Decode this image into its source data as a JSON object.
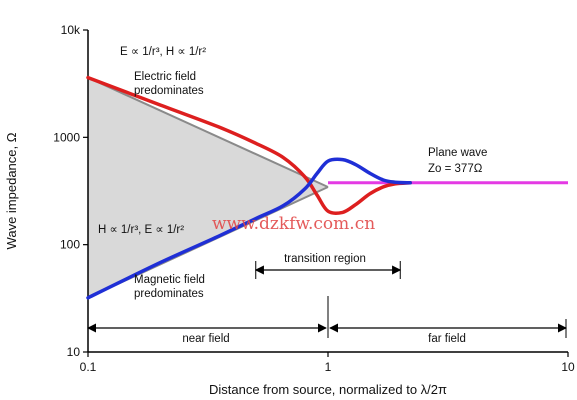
{
  "chart_data": {
    "type": "line",
    "xlabel": "Distance from source, normalized to λ/2π",
    "ylabel": "Wave impedance, Ω",
    "xscale": "log",
    "yscale": "log",
    "xlim": [
      0.1,
      10
    ],
    "ylim": [
      10,
      10000
    ],
    "grid": false,
    "x_ticks": [
      {
        "value": 0.1,
        "label": "0.1"
      },
      {
        "value": 1,
        "label": "1"
      },
      {
        "value": 10,
        "label": "10"
      }
    ],
    "y_ticks": [
      {
        "value": 10,
        "label": "10"
      },
      {
        "value": 100,
        "label": "100"
      },
      {
        "value": 1000,
        "label": "1000"
      },
      {
        "value": 10000,
        "label": "10k"
      }
    ],
    "colors": {
      "electric": "#dd1f1f",
      "magnetic": "#1f2fd6",
      "plane": "#e43ae4",
      "asymptote": "#8a8a8a",
      "region_fill": "#d9d9d9"
    },
    "series": [
      {
        "key": "electric",
        "x": [
          0.1,
          0.2,
          0.35,
          0.5,
          0.65,
          0.8,
          0.9,
          1.0,
          1.15,
          1.3,
          1.5,
          1.7,
          1.9,
          2.2,
          3,
          5,
          10
        ],
        "y": [
          3600,
          2000,
          1250,
          880,
          650,
          430,
          290,
          205,
          200,
          235,
          300,
          345,
          368,
          377,
          377,
          377,
          377
        ]
      },
      {
        "key": "magnetic",
        "x": [
          0.1,
          0.2,
          0.35,
          0.5,
          0.65,
          0.8,
          0.9,
          1.0,
          1.15,
          1.3,
          1.5,
          1.7,
          1.9,
          2.2,
          3,
          5,
          10
        ],
        "y": [
          32,
          68,
          120,
          175,
          230,
          330,
          460,
          600,
          620,
          560,
          460,
          400,
          382,
          377,
          377,
          377,
          377
        ]
      }
    ],
    "asymptotes": {
      "electric_upper": {
        "x": [
          0.1,
          1.0
        ],
        "y": [
          3600,
          360
        ]
      },
      "magnetic_lower": {
        "x": [
          0.1,
          1.0
        ],
        "y": [
          32,
          330
        ]
      }
    },
    "plane_wave_impedance": 377,
    "plane_wave_line": {
      "x": [
        1.0,
        10
      ],
      "y": [
        377,
        377
      ]
    },
    "transition_region": [
      0.5,
      2.0
    ],
    "near_field_range": [
      0.1,
      1.0
    ],
    "far_field_range": [
      1.0,
      10
    ],
    "annotations": {
      "electric_formula": "E ∝ 1/r³, H ∝ 1/r²",
      "electric_label_1": "Electric field",
      "electric_label_2": "predominates",
      "magnetic_formula": "H ∝ 1/r³, E ∝ 1/r²",
      "magnetic_label_1": "Magnetic field",
      "magnetic_label_2": "predominates",
      "plane_wave_label": "Plane wave",
      "plane_wave_z": "Zo = 377Ω",
      "transition_label": "transition region",
      "near_field_label": "near field",
      "far_field_label": "far field"
    },
    "watermark": "www.dzkfw.com.cn"
  }
}
